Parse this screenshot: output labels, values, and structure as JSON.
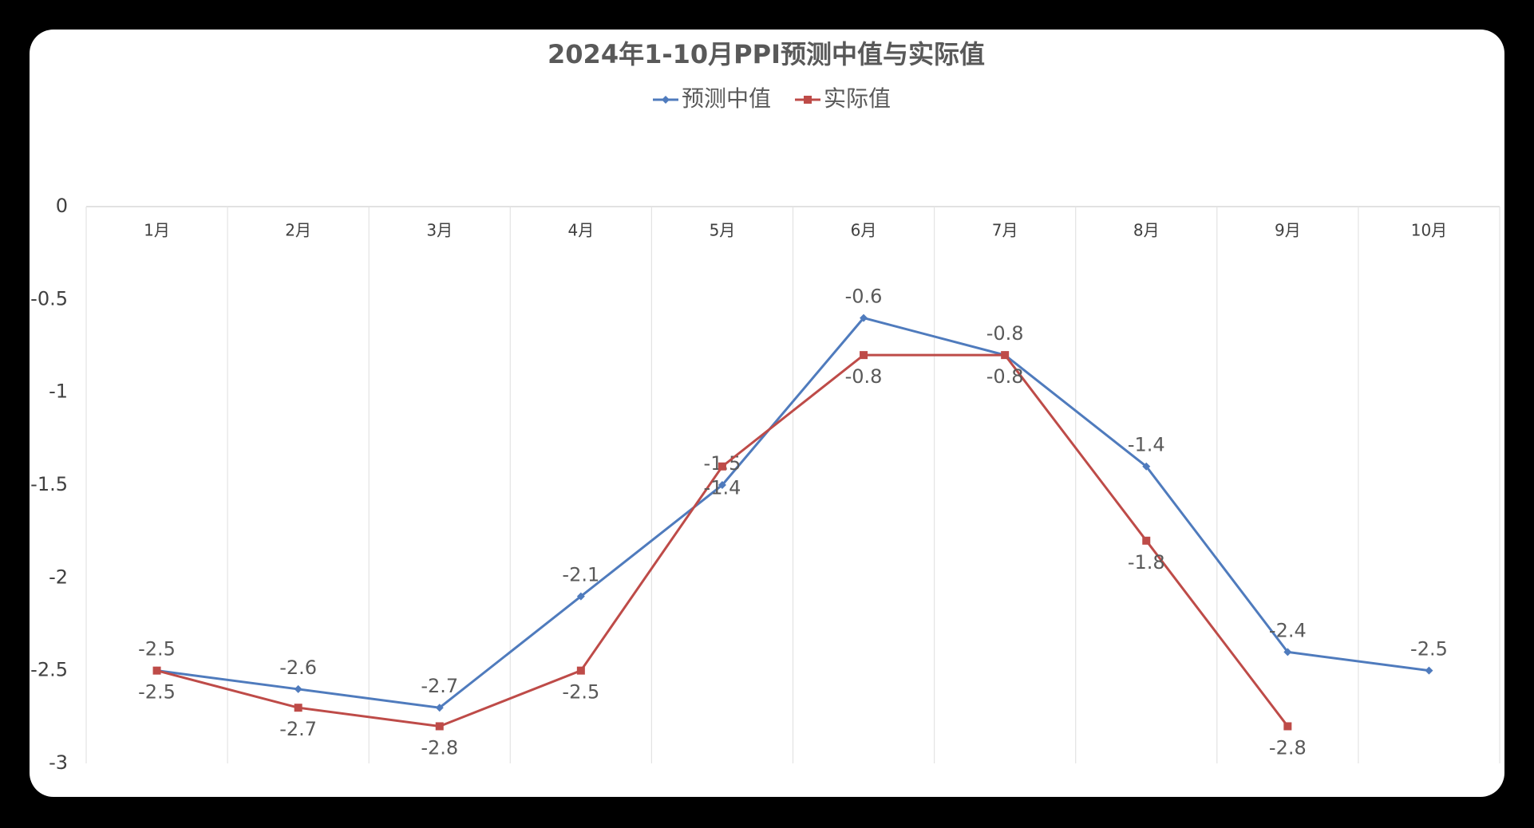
{
  "chart_data": {
    "type": "line",
    "title": "2024年1-10月PPI预测中值与实际值",
    "categories": [
      "1月",
      "2月",
      "3月",
      "4月",
      "5月",
      "6月",
      "7月",
      "8月",
      "9月",
      "10月"
    ],
    "series": [
      {
        "name": "预测中值",
        "color": "#4f7bbd",
        "marker": "diamond",
        "values": [
          -2.5,
          -2.6,
          -2.7,
          -2.1,
          -1.5,
          -0.6,
          -0.8,
          -1.4,
          -2.4,
          -2.5
        ]
      },
      {
        "name": "实际值",
        "color": "#be4b48",
        "marker": "square",
        "values": [
          -2.5,
          -2.7,
          -2.8,
          -2.5,
          -1.4,
          -0.8,
          -0.8,
          -1.8,
          -2.8,
          null
        ]
      }
    ],
    "ylim": [
      -3,
      0
    ],
    "yticks": [
      0,
      -0.5,
      -1,
      -1.5,
      -2,
      -2.5,
      -3
    ],
    "grid": true,
    "legend": "top"
  }
}
